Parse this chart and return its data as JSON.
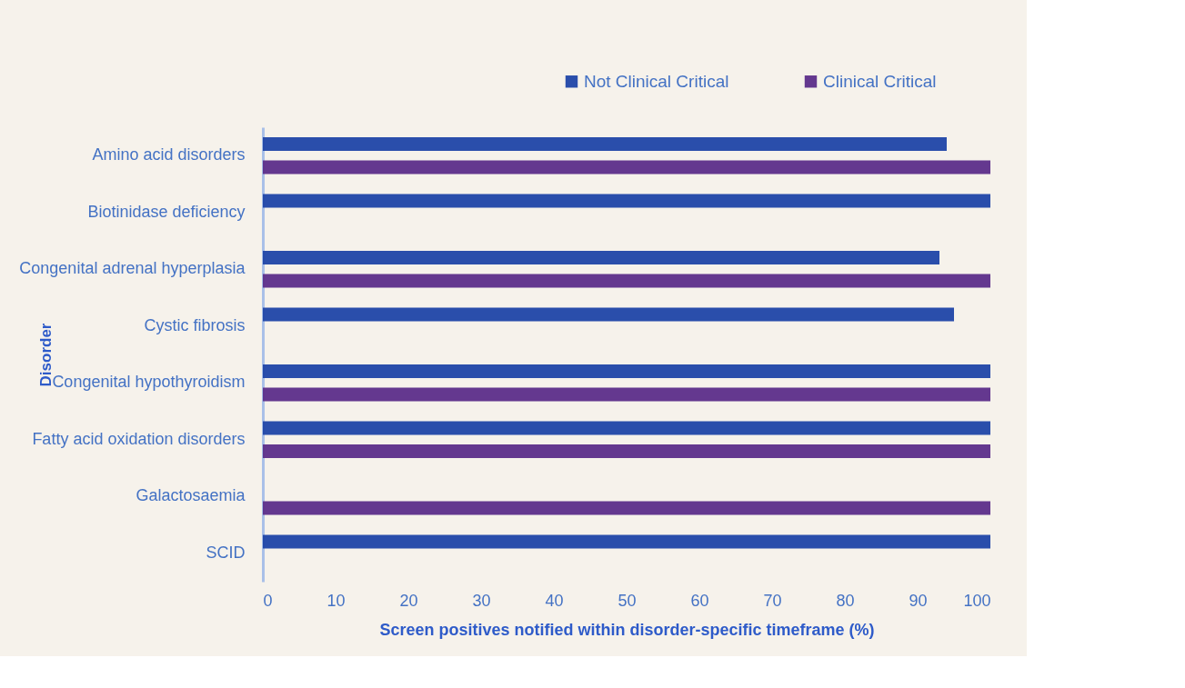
{
  "chart_data": {
    "type": "bar",
    "orientation": "horizontal",
    "xlabel": "Screen positives notified within disorder-specific timeframe (%)",
    "ylabel": "Disorder",
    "categories": [
      "Amino acid disorders",
      "Biotinidase deficiency",
      "Congenital adrenal hyperplasia",
      "Cystic fibrosis",
      "Congenital hypothyroidism",
      "Fatty acid oxidation disorders",
      "Galactosaemia",
      "SCID"
    ],
    "series": [
      {
        "name": "Not Clinical Critical",
        "color": "#1f45a8",
        "values": [
          94,
          100,
          93,
          95,
          100,
          100,
          null,
          100
        ]
      },
      {
        "name": "Clinical Critical",
        "color": "#5c2d8a",
        "values": [
          100,
          null,
          100,
          null,
          100,
          100,
          100,
          null
        ]
      }
    ],
    "xlim": [
      0,
      100
    ],
    "xticks": [
      0,
      10,
      20,
      30,
      40,
      50,
      60,
      70,
      80,
      90,
      100
    ],
    "grid": false,
    "legend": "top right"
  }
}
